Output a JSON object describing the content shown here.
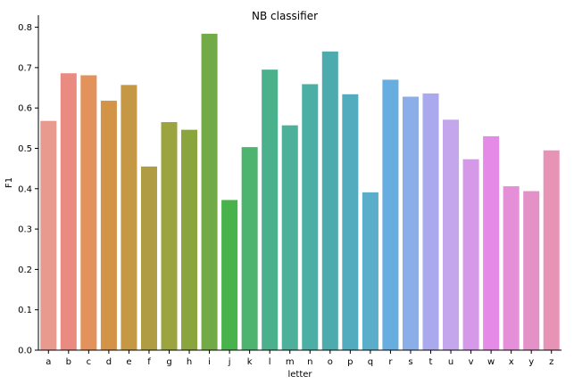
{
  "chart_data": {
    "type": "bar",
    "title": "NB classifier",
    "xlabel": "letter",
    "ylabel": "F1",
    "ylim": [
      0,
      0.83
    ],
    "yticks": [
      0.0,
      0.1,
      0.2,
      0.3,
      0.4,
      0.5,
      0.6,
      0.7,
      0.8
    ],
    "ytick_labels": [
      "0.0",
      "0.1",
      "0.2",
      "0.3",
      "0.4",
      "0.5",
      "0.6",
      "0.7",
      "0.8"
    ],
    "grid": false,
    "legend": "none",
    "categories": [
      "a",
      "b",
      "c",
      "d",
      "e",
      "f",
      "g",
      "h",
      "i",
      "j",
      "k",
      "l",
      "m",
      "n",
      "o",
      "p",
      "q",
      "r",
      "s",
      "t",
      "u",
      "v",
      "w",
      "x",
      "y",
      "z"
    ],
    "values": [
      0.568,
      0.686,
      0.681,
      0.618,
      0.657,
      0.455,
      0.565,
      0.546,
      0.784,
      0.372,
      0.503,
      0.695,
      0.557,
      0.659,
      0.74,
      0.634,
      0.391,
      0.67,
      0.628,
      0.636,
      0.571,
      0.473,
      0.53,
      0.406,
      0.394,
      0.495
    ],
    "colors": [
      "#e89a8f",
      "#e98b80",
      "#e2925a",
      "#d39448",
      "#c49844",
      "#b09c43",
      "#9ca43f",
      "#8aa53e",
      "#72aa47",
      "#47b34a",
      "#4cb46e",
      "#4bb08c",
      "#4cb09a",
      "#4cafa5",
      "#4dabae",
      "#52acbd",
      "#5aaec9",
      "#67ade0",
      "#8caee8",
      "#aba9ed",
      "#c3a6ec",
      "#d698e9",
      "#e58ae6",
      "#e48fd7",
      "#e491c8",
      "#e693b6"
    ]
  }
}
